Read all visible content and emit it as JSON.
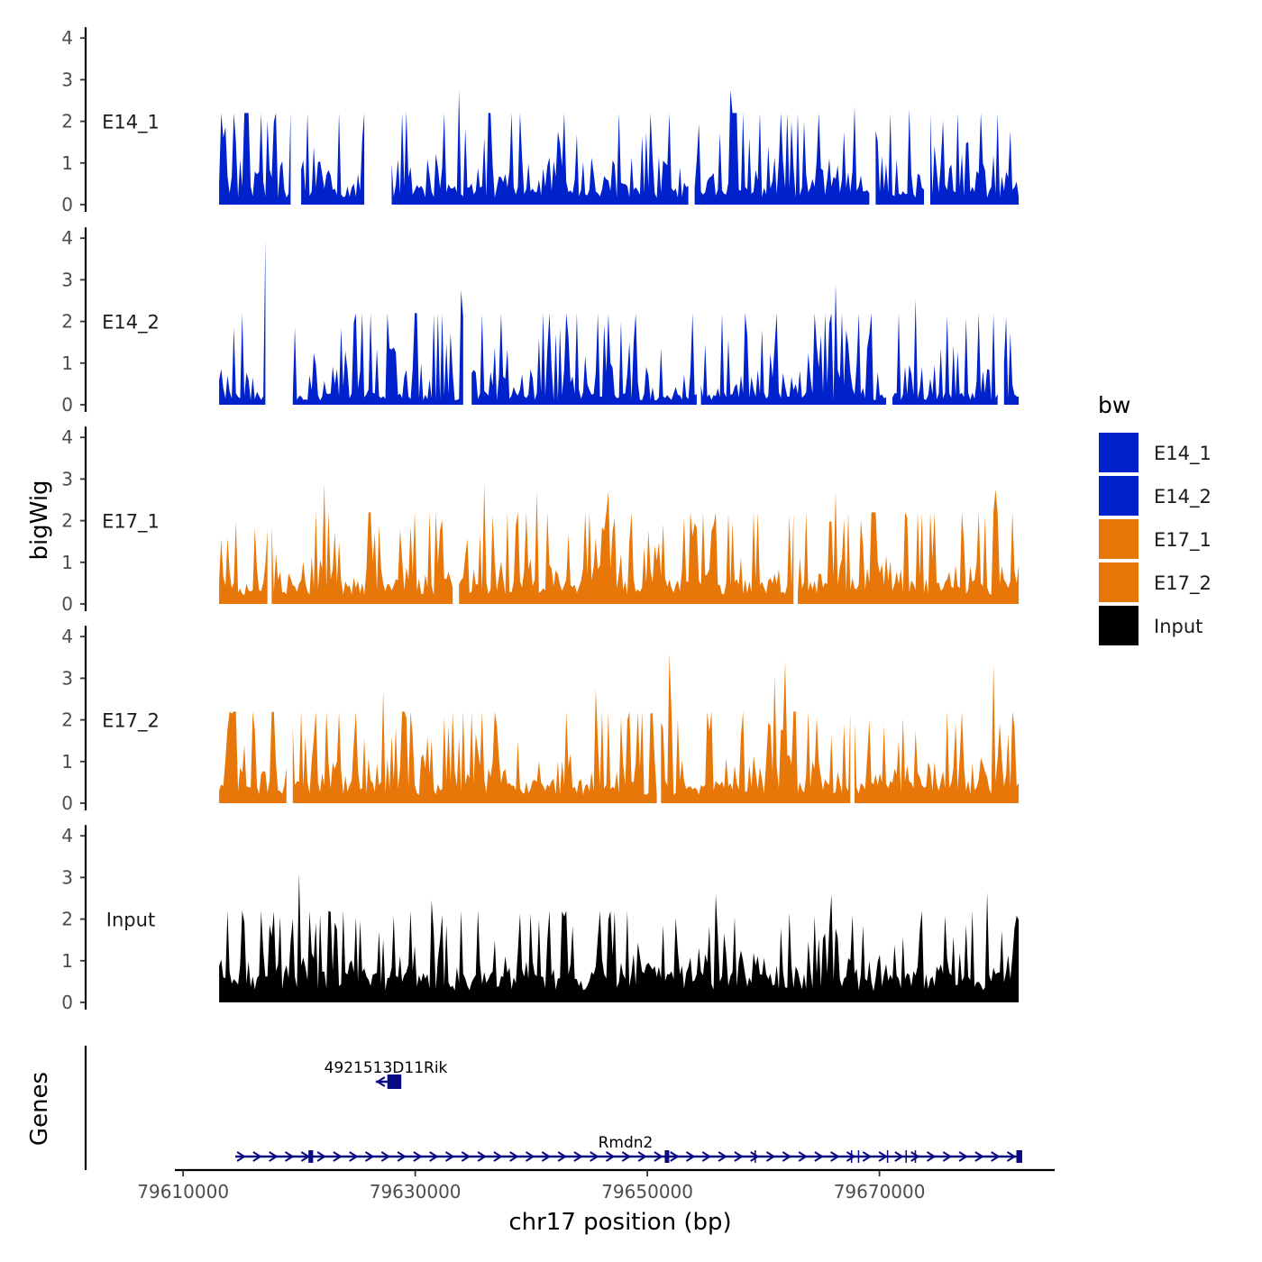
{
  "chart_data": {
    "type": "area",
    "ylabel": "bigWig",
    "xlabel": "chr17 position (bp)",
    "ylim": [
      0,
      4
    ],
    "yticks": [
      0,
      1,
      2,
      3,
      4
    ],
    "xlim": [
      79609600,
      79685100
    ],
    "xticks": [
      79610000,
      79630000,
      79650000,
      79670000
    ],
    "xtick_labels": [
      "79610000",
      "79630000",
      "79650000",
      "79670000"
    ],
    "x_range": [
      79613100,
      79682000
    ],
    "legend": {
      "title": "bw",
      "position": "right",
      "entries": [
        {
          "label": "E14_1",
          "color": "#0022CC"
        },
        {
          "label": "E14_2",
          "color": "#0022CC"
        },
        {
          "label": "E17_1",
          "color": "#E8770A"
        },
        {
          "label": "E17_2",
          "color": "#E8770A"
        },
        {
          "label": "Input",
          "color": "#000000"
        }
      ]
    },
    "series": [
      {
        "name": "E14_1",
        "color": "#0022CC",
        "gaps": [
          [
            79619300,
            79620000
          ],
          [
            79625700,
            79627800
          ],
          [
            79653600,
            79654000
          ],
          [
            79669300,
            79669600
          ],
          [
            79674000,
            79674300
          ]
        ],
        "peaks": [
          [
            79633800,
            2.75
          ],
          [
            79657100,
            2.75
          ],
          [
            79629200,
            2.25
          ],
          [
            79667900,
            2.35
          ],
          [
            79672500,
            2.3
          ]
        ],
        "seed": 11,
        "baseline": 0.45,
        "spikiness": 1.35
      },
      {
        "name": "E14_2",
        "color": "#0022CC",
        "gaps": [
          [
            79617200,
            79619300
          ],
          [
            79634200,
            79634700
          ],
          [
            79654300,
            79654600
          ],
          [
            79670700,
            79671000
          ],
          [
            79680300,
            79680700
          ]
        ],
        "peaks": [
          [
            79617000,
            4.0
          ],
          [
            79666200,
            2.9
          ],
          [
            79633900,
            2.75
          ],
          [
            79673100,
            2.55
          ]
        ],
        "seed": 23,
        "baseline": 0.3,
        "spikiness": 1.25
      },
      {
        "name": "E17_1",
        "color": "#E8770A",
        "gaps": [
          [
            79617400,
            79617600
          ],
          [
            79633400,
            79633600
          ],
          [
            79662700,
            79662900
          ]
        ],
        "peaks": [
          [
            79635900,
            2.9
          ],
          [
            79622100,
            2.9
          ],
          [
            79680000,
            2.75
          ],
          [
            79646600,
            2.7
          ],
          [
            79666200,
            2.7
          ],
          [
            79640500,
            2.7
          ]
        ],
        "seed": 37,
        "baseline": 0.6,
        "spikiness": 1.2
      },
      {
        "name": "E17_2",
        "color": "#E8770A",
        "gaps": [
          [
            79619000,
            79619300
          ],
          [
            79650900,
            79651100
          ],
          [
            79667600,
            79667800
          ]
        ],
        "peaks": [
          [
            79651900,
            3.6
          ],
          [
            79661800,
            3.4
          ],
          [
            79679800,
            3.35
          ],
          [
            79661000,
            3.05
          ],
          [
            79645500,
            2.75
          ],
          [
            79627300,
            2.7
          ]
        ],
        "seed": 53,
        "baseline": 0.55,
        "spikiness": 1.25
      },
      {
        "name": "Input",
        "color": "#000000",
        "gaps": [],
        "peaks": [
          [
            79620000,
            3.1
          ],
          [
            79655900,
            2.6
          ],
          [
            79679300,
            2.65
          ],
          [
            79665900,
            2.6
          ],
          [
            79631500,
            2.45
          ]
        ],
        "seed": 71,
        "baseline": 0.75,
        "spikiness": 1.0
      }
    ],
    "genes_panel": {
      "ylabel": "Genes",
      "color": "#0A0A80",
      "genes": [
        {
          "name": "4921513D11Rik",
          "start": 79626600,
          "end": 79628800,
          "strand": "-",
          "exons": [
            [
              79627600,
              79628800
            ]
          ]
        },
        {
          "name": "Rmdn2",
          "start": 79614500,
          "end": 79682300,
          "strand": "+",
          "exons": [
            [
              79620800,
              79621200
            ],
            [
              79651500,
              79651700
            ],
            [
              79681800,
              79682300
            ]
          ],
          "minor_ticks": [
            79659300,
            79667600,
            79668200,
            79670700,
            79672300,
            79673100
          ]
        }
      ]
    }
  }
}
